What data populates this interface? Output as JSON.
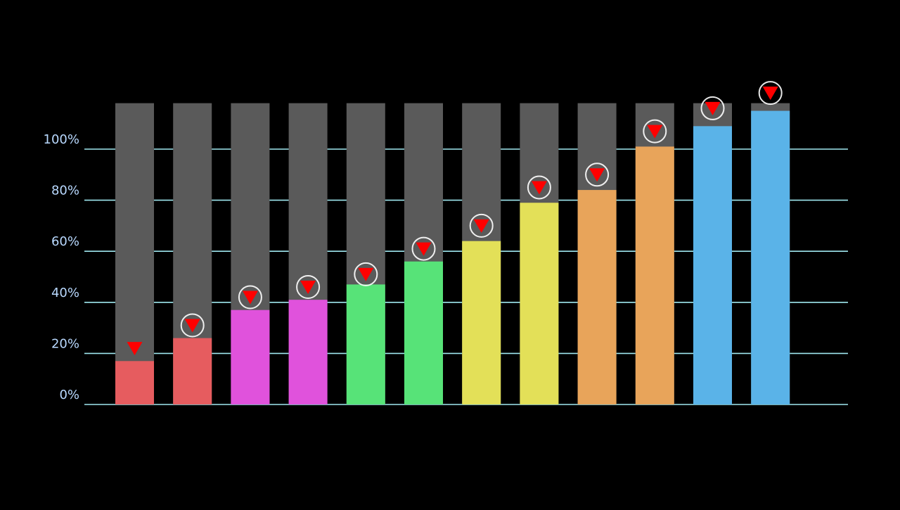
{
  "chart_data": {
    "type": "bar",
    "title": "",
    "xlabel": "",
    "ylabel": "",
    "ylim": [
      0,
      118
    ],
    "grid": true,
    "y_ticks": [
      {
        "value": 0,
        "label": "0%"
      },
      {
        "value": 20,
        "label": "20%"
      },
      {
        "value": 40,
        "label": "40%"
      },
      {
        "value": 60,
        "label": "60%"
      },
      {
        "value": 80,
        "label": "80%"
      },
      {
        "value": 100,
        "label": "100%"
      }
    ],
    "background_bar_value": 118,
    "values": [
      17,
      26,
      37,
      41,
      47,
      56,
      64,
      79,
      84,
      101,
      109,
      115
    ],
    "marker_values": [
      22,
      31,
      42,
      46,
      51,
      61,
      70,
      85,
      90,
      107,
      116,
      122
    ],
    "marker_circled": [
      false,
      true,
      true,
      true,
      true,
      true,
      true,
      true,
      true,
      true,
      true,
      true
    ],
    "bar_colors": [
      "#e65c5f",
      "#e65c5f",
      "#e052dc",
      "#e052dc",
      "#57e378",
      "#57e378",
      "#e3e058",
      "#e3e058",
      "#e8a45a",
      "#e8a45a",
      "#5ab3e8",
      "#5ab3e8"
    ],
    "colors": {
      "background": "#000000",
      "gridline": "#9fe8f0",
      "tick_label": "#b9d9ff",
      "background_bar": "#5a5a5a",
      "marker": "#ff0000",
      "marker_ring": "#ffffff"
    }
  }
}
